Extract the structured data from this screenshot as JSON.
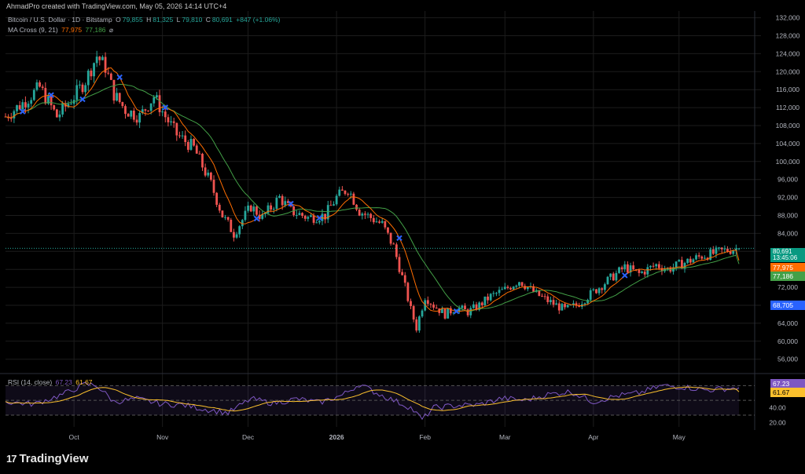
{
  "header": {
    "caption": "AhmadPro created with TradingView.com, May 05, 2026 14:14 UTC+4"
  },
  "legend": {
    "symbol": "Bitcoin / U.S. Dollar · 1D · Bitstamp",
    "open_label": "O",
    "open": "79,855",
    "high_label": "H",
    "high": "81,325",
    "low_label": "L",
    "low": "79,810",
    "close_label": "C",
    "close": "80,691",
    "change": "+847 (+1.06%)",
    "ma_name": "MA Cross (9, 21)",
    "ma_fast": "77,975",
    "ma_slow": "77,186",
    "ma_icon": "⌀",
    "rsi_name": "RSI (14, close)",
    "rsi_value": "67.23",
    "rsi_ma_value": "61.67"
  },
  "tags": {
    "price": "80,691",
    "countdown": "13:45:06",
    "ma_fast": "77,975",
    "ma_slow": "77,186",
    "cross": "68,705",
    "rsi": "67.23",
    "rsi_ma": "61.67"
  },
  "footer": {
    "logo_text": "TradingView",
    "logo_mark": "17"
  },
  "colors": {
    "up": "#26a69a",
    "down": "#ef5350",
    "ma_fast": "#ff6d00",
    "ma_slow": "#43a047",
    "rsi": "#7e57c2",
    "rsi_ma": "#fbc02d",
    "cross": "#2962ff"
  },
  "chart_data": {
    "type": "candlestick",
    "y_axis_ticks": [
      56000,
      60000,
      64000,
      68000,
      72000,
      76000,
      80000,
      84000,
      88000,
      92000,
      96000,
      100000,
      104000,
      108000,
      112000,
      116000,
      120000,
      124000,
      128000,
      132000
    ],
    "y_axis_labels": [
      "56,000",
      "60,000",
      "64,000",
      "68,000",
      "72,000",
      "76,000",
      "80,000",
      "84,000",
      "88,000",
      "92,000",
      "96,000",
      "100,000",
      "104,000",
      "108,000",
      "112,000",
      "116,000",
      "120,000",
      "124,000",
      "128,000",
      "132,000"
    ],
    "ylim": [
      53500,
      133500
    ],
    "x_tick_labels": [
      "Oct",
      "Nov",
      "Dec",
      "2026",
      "Feb",
      "Mar",
      "Apr",
      "May"
    ],
    "x_tick_days": [
      24,
      55,
      85,
      116,
      147,
      175,
      206,
      236
    ],
    "total_days": 258,
    "path_days": [
      0,
      6,
      12,
      18,
      24,
      28,
      32,
      35,
      38,
      42,
      47,
      52,
      56,
      60,
      66,
      72,
      76,
      80,
      86,
      90,
      96,
      100,
      106,
      112,
      116,
      120,
      124,
      128,
      132,
      136,
      140,
      142,
      144,
      147,
      150,
      154,
      158,
      162,
      166,
      170,
      175,
      180,
      186,
      190,
      196,
      200,
      204,
      208,
      212,
      217,
      222,
      228,
      232,
      236,
      240,
      244,
      248,
      252,
      257
    ],
    "path_prices": [
      110000,
      113000,
      116500,
      110000,
      114500,
      118000,
      123500,
      121000,
      115000,
      111500,
      110000,
      114500,
      110000,
      106000,
      103000,
      95000,
      88000,
      84000,
      90000,
      87500,
      92000,
      89000,
      87500,
      88000,
      92000,
      94000,
      89000,
      87500,
      86000,
      81000,
      72000,
      67000,
      63000,
      70000,
      68000,
      66000,
      67500,
      66500,
      68000,
      70000,
      71500,
      73500,
      70500,
      69000,
      67000,
      68000,
      70000,
      72000,
      74000,
      76500,
      75000,
      77000,
      76000,
      77000,
      78000,
      79000,
      79500,
      80200,
      80691
    ],
    "ma_fast_last": 77975,
    "ma_slow_last": 77186,
    "cross_marker_days": [
      6,
      16,
      27,
      40,
      56,
      88,
      100,
      110,
      138,
      158,
      217
    ],
    "rsi": {
      "name": "RSI (14, close)",
      "last": 67.23,
      "ma_last": 61.67,
      "y_ticks": [
        20,
        40
      ],
      "y_tick_labels": [
        "20.00",
        "40.00"
      ],
      "band_upper": 70,
      "band_lower": 30,
      "ylim": [
        14,
        80
      ],
      "path_days": [
        0,
        10,
        20,
        28,
        32,
        38,
        46,
        55,
        62,
        70,
        78,
        86,
        94,
        102,
        110,
        118,
        124,
        130,
        136,
        142,
        146,
        150,
        158,
        166,
        174,
        182,
        190,
        198,
        206,
        214,
        222,
        230,
        238,
        246,
        252,
        257
      ],
      "path_values": [
        48,
        45,
        58,
        72,
        70,
        48,
        52,
        45,
        44,
        38,
        33,
        52,
        46,
        52,
        47,
        57,
        72,
        60,
        50,
        40,
        24,
        40,
        43,
        44,
        53,
        50,
        58,
        62,
        48,
        56,
        60,
        70,
        68,
        64,
        66,
        67.23
      ]
    }
  }
}
